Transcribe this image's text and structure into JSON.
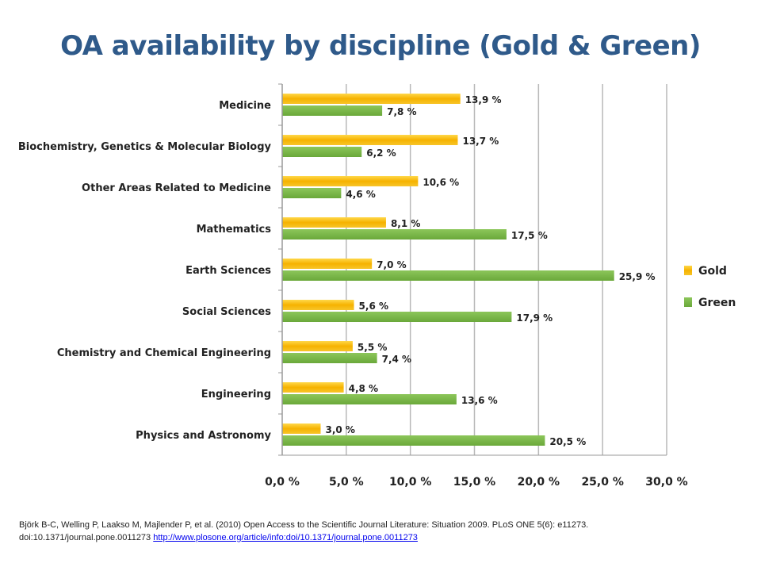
{
  "chart_data": {
    "type": "bar",
    "orientation": "horizontal",
    "title": "OA availability by discipline (Gold & Green)",
    "categories": [
      "Medicine",
      "Biochemistry, Genetics & Molecular  Biology",
      "Other Areas Related to Medicine",
      "Mathematics",
      "Earth Sciences",
      "Social Sciences",
      "Chemistry and Chemical Engineering",
      "Engineering",
      "Physics and Astronomy"
    ],
    "series": [
      {
        "name": "Gold",
        "color": "#f5b800",
        "values": [
          13.9,
          13.7,
          10.6,
          8.1,
          7.0,
          5.6,
          5.5,
          4.8,
          3.0
        ],
        "labels": [
          "13,9 %",
          "13,7 %",
          "10,6 %",
          "8,1 %",
          "7,0 %",
          "5,6 %",
          "5,5 %",
          "4,8 %",
          "3,0 %"
        ]
      },
      {
        "name": "Green",
        "color": "#7ab648",
        "values": [
          7.8,
          6.2,
          4.6,
          17.5,
          25.9,
          17.9,
          7.4,
          13.6,
          20.5
        ],
        "labels": [
          "7,8 %",
          "6,2 %",
          "4,6 %",
          "17,5 %",
          "25,9 %",
          "17,9 %",
          "7,4 %",
          "13,6 %",
          "20,5 %"
        ]
      }
    ],
    "xlim": [
      0,
      30
    ],
    "xticks": [
      0,
      5,
      10,
      15,
      20,
      25,
      30
    ],
    "xtick_labels": [
      "0,0 %",
      "5,0 %",
      "10,0 %",
      "15,0 %",
      "20,0 %",
      "25,0 %",
      "30,0 %"
    ],
    "grid": "vertical",
    "legend_position": "right"
  },
  "citation": {
    "line1": "Björk B-C, Welling P, Laakso M, Majlender P, et al. (2010) Open Access to the Scientific Journal Literature: Situation 2009. PLoS ONE 5(6): e11273.",
    "line2_prefix": "doi:10.1371/journal.pone.0011273",
    "link_text": "http://www.plosone.org/article/info:doi/10.1371/journal.pone.0011273"
  }
}
